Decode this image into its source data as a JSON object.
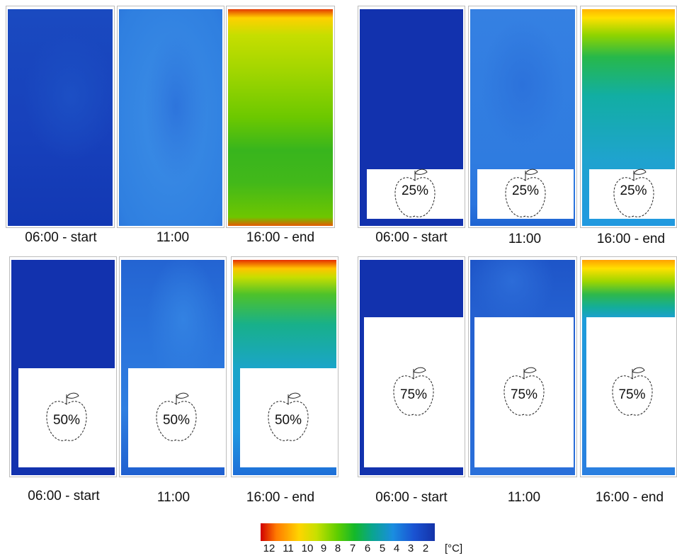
{
  "captions": {
    "g1": [
      "06:00 - start",
      "11:00",
      "16:00 - end"
    ],
    "g2": [
      "06:00 - start",
      "11:00",
      "16:00 - end"
    ],
    "g3": [
      "06:00 - start",
      "11:00",
      "16:00 - end"
    ],
    "g4": [
      "06:00 - start",
      "11:00",
      "16:00 - end"
    ]
  },
  "loads": {
    "g2": "25%",
    "g3": "50%",
    "g4": "75%"
  },
  "colorbar": {
    "ticks": [
      "12",
      "11",
      "10",
      "9",
      "8",
      "7",
      "6",
      "5",
      "4",
      "3",
      "2"
    ],
    "unit": "[°C]",
    "colors": [
      "#d00000",
      "#ff7a00",
      "#ffd400",
      "#5fce00",
      "#0aa58e",
      "#1a8de0",
      "#1433a8"
    ]
  },
  "icons": {
    "apple": "apple-icon"
  }
}
